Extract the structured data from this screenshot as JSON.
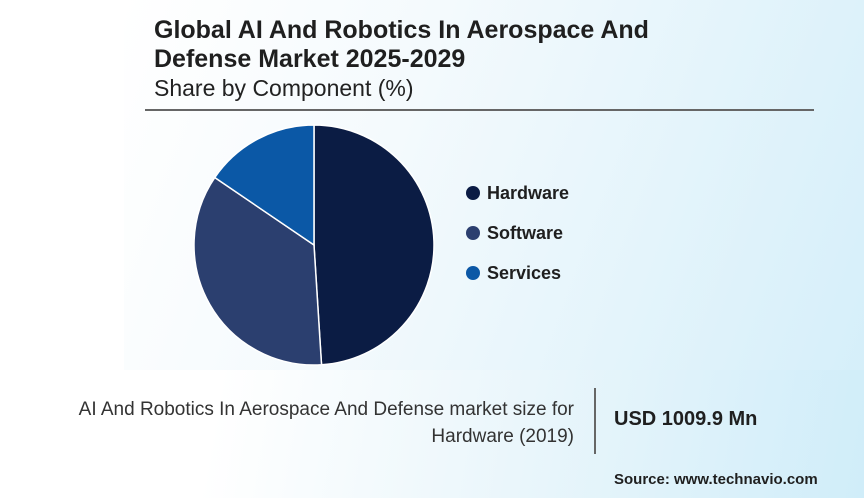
{
  "chart_data": {
    "type": "pie",
    "title": "Global AI And Robotics In Aerospace And Defense Market 2025-2029",
    "subtitle": "Share by Component (%)",
    "categories": [
      "Hardware",
      "Software",
      "Services"
    ],
    "values": [
      49,
      35.5,
      15.5
    ],
    "colors": [
      "#0b1c44",
      "#2b3f6f",
      "#0b58a6"
    ],
    "legend_position": "right"
  },
  "header": {
    "title_line1": "Global AI And Robotics In Aerospace And",
    "title_line2": "Defense Market 2025-2029",
    "subtitle": "Share by Component (%)"
  },
  "footer": {
    "description_line1": "AI And Robotics In Aerospace And Defense market size for",
    "description_line2": "Hardware (2019)",
    "value": "USD 1009.9 Mn",
    "source": "Source: www.technavio.com"
  }
}
